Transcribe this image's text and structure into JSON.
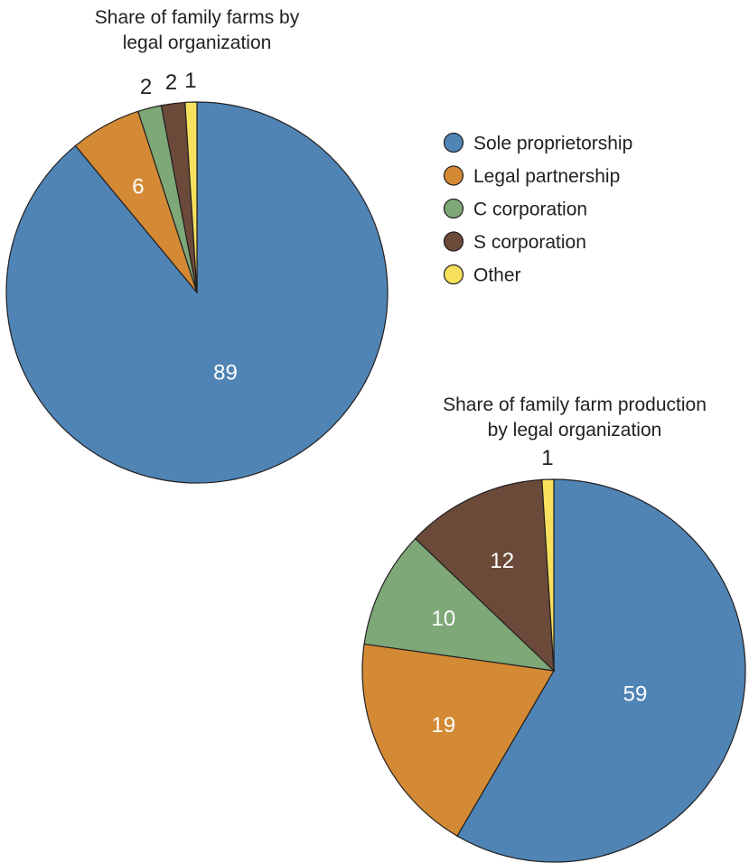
{
  "colors": {
    "Sole proprietorship": "#4f84b4",
    "Legal partnership": "#d48a35",
    "C corporation": "#7ea877",
    "S corporation": "#6b4a3a",
    "Other": "#f7e15c"
  },
  "legend": [
    "Sole proprietorship",
    "Legal partnership",
    "C corporation",
    "S corporation",
    "Other"
  ],
  "chart_data": [
    {
      "type": "pie",
      "title_lines": [
        "Share of family farms by",
        "legal organization"
      ],
      "slices": [
        {
          "label": "Sole proprietorship",
          "value": 89
        },
        {
          "label": "Legal partnership",
          "value": 6
        },
        {
          "label": "C corporation",
          "value": 2
        },
        {
          "label": "S corporation",
          "value": 2
        },
        {
          "label": "Other",
          "value": 1
        }
      ]
    },
    {
      "type": "pie",
      "title_lines": [
        "Share of family farm production",
        "by legal organization"
      ],
      "slices": [
        {
          "label": "Sole proprietorship",
          "value": 59
        },
        {
          "label": "Legal partnership",
          "value": 19
        },
        {
          "label": "C corporation",
          "value": 10
        },
        {
          "label": "S corporation",
          "value": 12
        },
        {
          "label": "Other",
          "value": 1
        }
      ]
    }
  ]
}
